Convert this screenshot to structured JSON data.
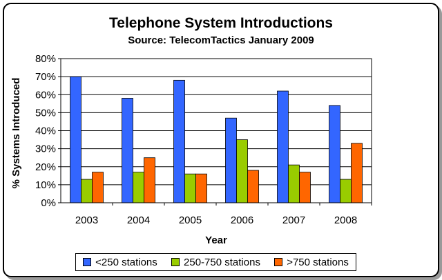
{
  "chart_data": {
    "type": "bar",
    "title": "Telephone System Introductions",
    "subtitle": "Source: TelecomTactics January 2009",
    "xlabel": "Year",
    "ylabel": "% Systems Introduced",
    "categories": [
      "2003",
      "2004",
      "2005",
      "2006",
      "2007",
      "2008"
    ],
    "ylim": [
      0,
      80
    ],
    "yticks": [
      "0%",
      "10%",
      "20%",
      "30%",
      "40%",
      "50%",
      "60%",
      "70%",
      "80%"
    ],
    "grid": true,
    "legend_position": "bottom",
    "series": [
      {
        "name": "<250 stations",
        "color": "#3366ff",
        "values": [
          70,
          58,
          68,
          47,
          62,
          54
        ]
      },
      {
        "name": "250-750 stations",
        "color": "#99cc00",
        "values": [
          13,
          17,
          16,
          35,
          21,
          13
        ]
      },
      {
        "name": ">750 stations",
        "color": "#ff6600",
        "values": [
          17,
          25,
          16,
          18,
          17,
          33
        ]
      }
    ]
  }
}
